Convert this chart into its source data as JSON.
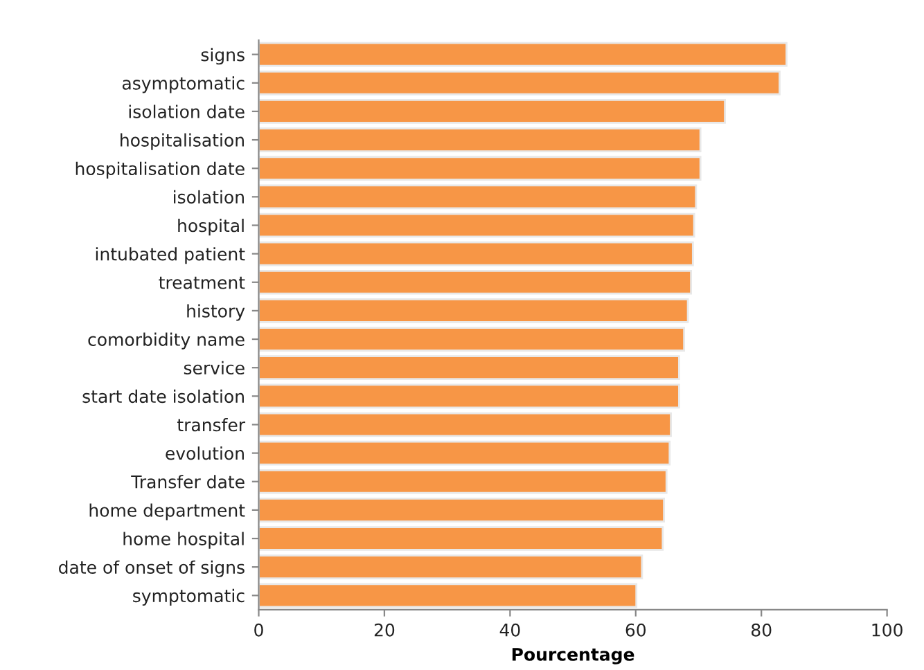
{
  "chart_data": {
    "type": "bar",
    "orientation": "horizontal",
    "xlabel": "Pourcentage",
    "categories": [
      "signs",
      "asymptomatic",
      "isolation date",
      "hospitalisation",
      "hospitalisation date",
      "isolation",
      "hospital",
      "intubated patient",
      "treatment",
      "history",
      "comorbidity name",
      "service",
      "start date isolation",
      "transfer",
      "evolution",
      "Transfer date",
      "home department",
      "home hospital",
      "date of onset of signs",
      "symptomatic"
    ],
    "values": [
      84.0,
      82.9,
      74.2,
      70.3,
      70.3,
      69.6,
      69.3,
      69.1,
      68.8,
      68.3,
      67.7,
      66.9,
      66.9,
      65.6,
      65.4,
      64.9,
      64.5,
      64.3,
      61.0,
      60.1
    ],
    "color": "#f79646",
    "xlim": [
      0,
      100
    ],
    "xticks": [
      0,
      20,
      40,
      60,
      80,
      100
    ],
    "grid": false,
    "legend": false
  }
}
